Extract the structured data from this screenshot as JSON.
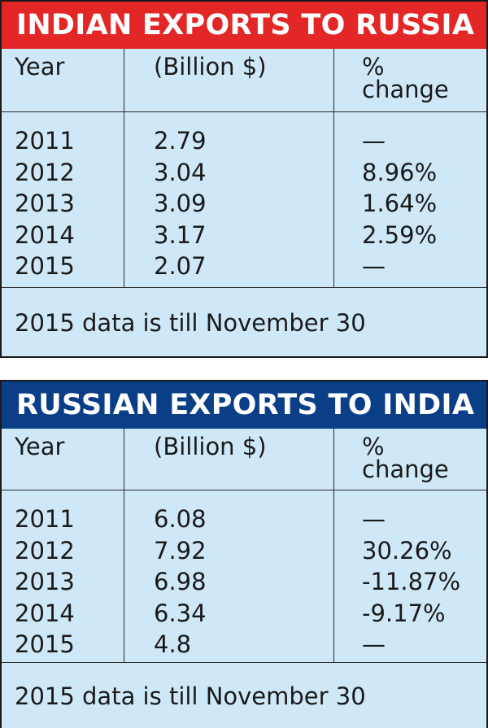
{
  "chart_data": [
    {
      "type": "table",
      "title": "INDIAN EXPORTS TO RUSSIA",
      "headers": [
        "Year",
        "(Billion $)",
        "%",
        "change"
      ],
      "rows": [
        {
          "year": "2011",
          "value": "2.79",
          "change": "—"
        },
        {
          "year": "2012",
          "value": "3.04",
          "change": "8.96%"
        },
        {
          "year": "2013",
          "value": "3.09",
          "change": "1.64%"
        },
        {
          "year": "2014",
          "value": "3.17",
          "change": "2.59%"
        },
        {
          "year": "2015",
          "value": "2.07",
          "change": "—"
        }
      ],
      "note": "2015  data is till November 30",
      "header_color": "#e32626"
    },
    {
      "type": "table",
      "title": "RUSSIAN EXPORTS TO INDIA",
      "headers": [
        "Year",
        "(Billion $)",
        "%",
        "change"
      ],
      "rows": [
        {
          "year": "2011",
          "value": "6.08",
          "change": "—"
        },
        {
          "year": "2012",
          "value": "7.92",
          "change": "30.26%"
        },
        {
          "year": "2013",
          "value": "6.98",
          "change": "-11.87%"
        },
        {
          "year": "2014",
          "value": "6.34",
          "change": "-9.17%"
        },
        {
          "year": "2015",
          "value": "4.8",
          "change": "—"
        }
      ],
      "note": "2015  data is till November 30",
      "header_color": "#0a3f87"
    }
  ]
}
